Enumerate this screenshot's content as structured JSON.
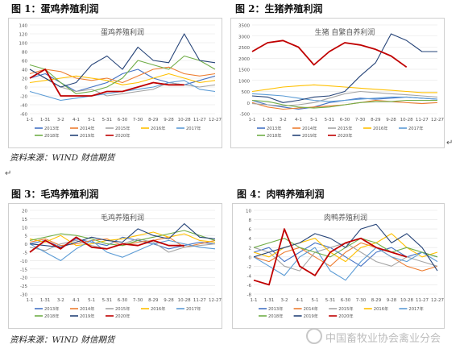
{
  "figures": [
    {
      "label": "图 1：蛋鸡养殖利润"
    },
    {
      "label": "图 2：生猪养殖利润"
    },
    {
      "label": "图 3：毛鸡养殖利润"
    },
    {
      "label": "图 4：肉鸭养殖利润"
    }
  ],
  "source_text": "资料来源：WIND  财信期货",
  "para_mark": "↵",
  "watermark": "中国畜牧业协会禽业分会",
  "chart_data": [
    {
      "type": "line",
      "title": "蛋鸡养殖利润",
      "x_ticks": [
        "1-1",
        "1-31",
        "3-2",
        "4-1",
        "5-1",
        "5-31",
        "6-30",
        "7-30",
        "8-29",
        "9-28",
        "10-28",
        "11-27",
        "12-27"
      ],
      "ylim": [
        -60,
        140
      ],
      "y_ticks": [
        140,
        120,
        100,
        80,
        60,
        40,
        20,
        0,
        -20,
        -40,
        -60
      ],
      "legend": [
        "2013年",
        "2014年",
        "2015年",
        "2016年",
        "2017年",
        "2018年",
        "2019年",
        "2020年"
      ],
      "colors": [
        "#4472c4",
        "#ed7d31",
        "#a5a5a5",
        "#ffc000",
        "#5b9bd5",
        "#70ad47",
        "#264478",
        "#c00000"
      ],
      "series": [
        {
          "name": "2013年",
          "values": [
            20,
            30,
            10,
            -10,
            0,
            10,
            30,
            40,
            20,
            10,
            5,
            15,
            25
          ]
        },
        {
          "name": "2014年",
          "values": [
            30,
            40,
            35,
            20,
            15,
            20,
            10,
            25,
            40,
            45,
            30,
            25,
            30
          ]
        },
        {
          "name": "2015年",
          "values": [
            40,
            20,
            0,
            -10,
            -5,
            -20,
            -15,
            -10,
            -5,
            10,
            5,
            0,
            5
          ]
        },
        {
          "name": "2016年",
          "values": [
            10,
            15,
            20,
            25,
            20,
            15,
            5,
            10,
            20,
            30,
            20,
            10,
            15
          ]
        },
        {
          "name": "2017年",
          "values": [
            -10,
            -20,
            -30,
            -25,
            -20,
            -15,
            -10,
            -5,
            0,
            10,
            15,
            -5,
            -10
          ]
        },
        {
          "name": "2018年",
          "values": [
            50,
            40,
            10,
            -15,
            -10,
            0,
            20,
            60,
            50,
            40,
            70,
            60,
            40
          ]
        },
        {
          "name": "2019年",
          "values": [
            40,
            20,
            0,
            10,
            50,
            70,
            40,
            90,
            60,
            55,
            120,
            60,
            55
          ]
        },
        {
          "name": "2020年",
          "values": [
            20,
            40,
            -20,
            -20,
            -20,
            -10,
            -10,
            0,
            10,
            5,
            5,
            null,
            null
          ]
        }
      ]
    },
    {
      "type": "line",
      "title": "生猪  自繁自养利润",
      "x_ticks": [
        "1-1",
        "1-31",
        "3-2",
        "4-1",
        "5-1",
        "5-31",
        "6-30",
        "7-30",
        "8-29",
        "9-28",
        "10-28",
        "11-27",
        "12-27"
      ],
      "ylim": [
        -500,
        3500
      ],
      "y_ticks": [
        3500,
        3000,
        2500,
        2000,
        1500,
        1000,
        500,
        0,
        -500
      ],
      "legend": [
        "2013年",
        "2014年",
        "2015年",
        "2016年",
        "2017年",
        "2018年",
        "2019年",
        "2020年"
      ],
      "colors": [
        "#4472c4",
        "#ed7d31",
        "#a5a5a5",
        "#ffc000",
        "#5b9bd5",
        "#70ad47",
        "#264478",
        "#c00000"
      ],
      "series": [
        {
          "name": "2013年",
          "values": [
            100,
            -100,
            -200,
            -300,
            -200,
            0,
            100,
            200,
            150,
            200,
            250,
            200,
            150
          ]
        },
        {
          "name": "2014年",
          "values": [
            0,
            -200,
            -300,
            -250,
            -200,
            -150,
            -100,
            0,
            100,
            50,
            0,
            -50,
            0
          ]
        },
        {
          "name": "2015年",
          "values": [
            -50,
            -100,
            -150,
            -100,
            0,
            200,
            400,
            500,
            450,
            400,
            350,
            300,
            250
          ]
        },
        {
          "name": "2016年",
          "values": [
            500,
            600,
            700,
            750,
            800,
            750,
            700,
            650,
            600,
            550,
            500,
            450,
            450
          ]
        },
        {
          "name": "2017年",
          "values": [
            400,
            350,
            300,
            200,
            100,
            50,
            100,
            150,
            200,
            250,
            250,
            200,
            150
          ]
        },
        {
          "name": "2018年",
          "values": [
            100,
            50,
            -100,
            -200,
            -250,
            -200,
            -100,
            0,
            50,
            50,
            100,
            100,
            100
          ]
        },
        {
          "name": "2019年",
          "values": [
            300,
            250,
            0,
            100,
            250,
            300,
            500,
            1200,
            1800,
            3100,
            2800,
            2300,
            2300
          ]
        },
        {
          "name": "2020年",
          "values": [
            2300,
            2700,
            2800,
            2500,
            1700,
            2300,
            2700,
            2600,
            2400,
            2100,
            1600,
            null,
            null
          ]
        }
      ]
    },
    {
      "type": "line",
      "title": "毛鸡养殖利润",
      "x_ticks": [
        "1-1",
        "1-31",
        "3-2",
        "4-1",
        "5-1",
        "5-31",
        "6-30",
        "7-30",
        "8-29",
        "9-28",
        "10-28",
        "11-27",
        "12-27"
      ],
      "ylim": [
        -30,
        20
      ],
      "y_ticks": [
        20,
        15,
        10,
        5,
        0,
        -5,
        -10,
        -15,
        -20,
        -25,
        -30
      ],
      "legend": [
        "2013年",
        "2014年",
        "2015年",
        "2016年",
        "2017年",
        "2018年",
        "2019年",
        "2020年"
      ],
      "colors": [
        "#4472c4",
        "#ed7d31",
        "#a5a5a5",
        "#ffc000",
        "#5b9bd5",
        "#70ad47",
        "#264478",
        "#c00000"
      ],
      "series": [
        {
          "name": "2013年",
          "values": [
            0,
            2,
            -2,
            3,
            1,
            -1,
            4,
            2,
            0,
            -3,
            -1,
            1,
            0
          ]
        },
        {
          "name": "2014年",
          "values": [
            1,
            3,
            -1,
            0,
            2,
            3,
            -1,
            1,
            2,
            4,
            -2,
            0,
            2
          ]
        },
        {
          "name": "2015年",
          "values": [
            -2,
            -4,
            0,
            2,
            -1,
            -3,
            0,
            3,
            1,
            -5,
            -2,
            -1,
            0
          ]
        },
        {
          "name": "2016年",
          "values": [
            3,
            1,
            5,
            -1,
            0,
            2,
            3,
            5,
            7,
            4,
            6,
            2,
            1
          ]
        },
        {
          "name": "2017年",
          "values": [
            0,
            -5,
            -10,
            -3,
            2,
            -5,
            -8,
            -4,
            0,
            2,
            0,
            -2,
            -3
          ]
        },
        {
          "name": "2018年",
          "values": [
            2,
            4,
            6,
            5,
            3,
            0,
            -1,
            2,
            4,
            6,
            8,
            5,
            2
          ]
        },
        {
          "name": "2019年",
          "values": [
            0,
            -1,
            -2,
            1,
            4,
            2,
            1,
            9,
            5,
            3,
            12,
            4,
            3
          ]
        },
        {
          "name": "2020年",
          "values": [
            -5,
            2,
            -3,
            4,
            -2,
            -3,
            0,
            -1,
            2,
            -1,
            -1,
            null,
            null
          ]
        }
      ]
    },
    {
      "type": "line",
      "title": "肉鸭养殖利润",
      "x_ticks": [
        "1-1",
        "1-31",
        "3-2",
        "4-1",
        "5-1",
        "5-31",
        "6-30",
        "7-30",
        "8-29",
        "9-28",
        "10-28",
        "11-27",
        "12-27"
      ],
      "ylim": [
        -8,
        10
      ],
      "y_ticks": [
        10,
        8,
        6,
        4,
        2,
        0,
        -2,
        -4,
        -6,
        -8
      ],
      "legend": [
        "2013年",
        "2014年",
        "2015年",
        "2016年",
        "2017年",
        "2018年",
        "2019年",
        "2020年"
      ],
      "colors": [
        "#4472c4",
        "#ed7d31",
        "#a5a5a5",
        "#ffc000",
        "#5b9bd5",
        "#70ad47",
        "#264478",
        "#c00000"
      ],
      "series": [
        {
          "name": "2013年",
          "values": [
            1,
            2,
            -1,
            1,
            3,
            2,
            0,
            -2,
            1,
            2,
            0,
            1,
            0
          ]
        },
        {
          "name": "2014年",
          "values": [
            0,
            -1,
            1,
            2,
            0,
            -2,
            1,
            3,
            2,
            0,
            -2,
            -3,
            -2
          ]
        },
        {
          "name": "2015年",
          "values": [
            2,
            1,
            -2,
            -3,
            1,
            2,
            3,
            1,
            -1,
            -2,
            0,
            -1,
            -2
          ]
        },
        {
          "name": "2016年",
          "values": [
            1,
            0,
            2,
            3,
            4,
            1,
            -1,
            2,
            3,
            5,
            2,
            0,
            1
          ]
        },
        {
          "name": "2017年",
          "values": [
            0,
            -2,
            -4,
            0,
            2,
            -3,
            -5,
            -1,
            2,
            0,
            -1,
            1,
            -1
          ]
        },
        {
          "name": "2018年",
          "values": [
            2,
            3,
            4,
            2,
            1,
            0,
            2,
            4,
            3,
            1,
            2,
            1,
            0
          ]
        },
        {
          "name": "2019年",
          "values": [
            0,
            1,
            2,
            3,
            5,
            4,
            2,
            6,
            7,
            3,
            5,
            2,
            -3
          ]
        },
        {
          "name": "2020年",
          "values": [
            -5,
            -6,
            6,
            -2,
            -4,
            1,
            3,
            4,
            2,
            1,
            0,
            null,
            null
          ]
        }
      ]
    }
  ]
}
